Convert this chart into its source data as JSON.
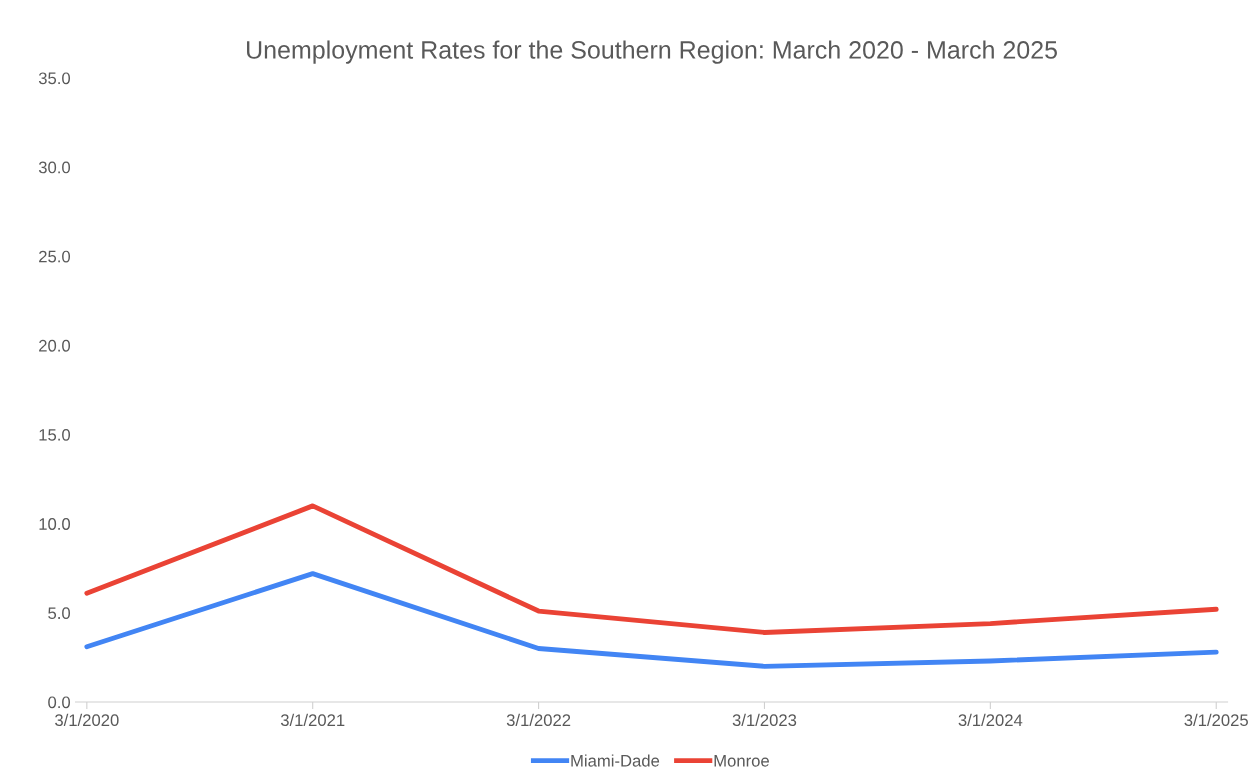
{
  "chart_data": {
    "type": "line",
    "title": "Unemployment Rates for the Southern Region: March 2020 - March 2025",
    "categories": [
      "3/1/2020",
      "3/1/2021",
      "3/1/2022",
      "3/1/2023",
      "3/1/2024",
      "3/1/2025"
    ],
    "series": [
      {
        "name": "Miami-Dade",
        "color": "#4285f4",
        "values": [
          3.1,
          7.2,
          3.0,
          2.0,
          2.3,
          2.8
        ]
      },
      {
        "name": "Monroe",
        "color": "#ea4335",
        "values": [
          6.1,
          11.0,
          5.1,
          3.9,
          4.4,
          5.2
        ]
      }
    ],
    "ylim": [
      0,
      35
    ],
    "yticks": [
      {
        "value": 0,
        "label": "0.0"
      },
      {
        "value": 5,
        "label": "5.0"
      },
      {
        "value": 10,
        "label": "10.0"
      },
      {
        "value": 15,
        "label": "15.0"
      },
      {
        "value": 20,
        "label": "20.0"
      },
      {
        "value": 25,
        "label": "25.0"
      },
      {
        "value": 30,
        "label": "30.0"
      },
      {
        "value": 35,
        "label": "35.0"
      }
    ],
    "grid": false,
    "legend": "bottom",
    "marker": "none",
    "line_style": "solid"
  }
}
